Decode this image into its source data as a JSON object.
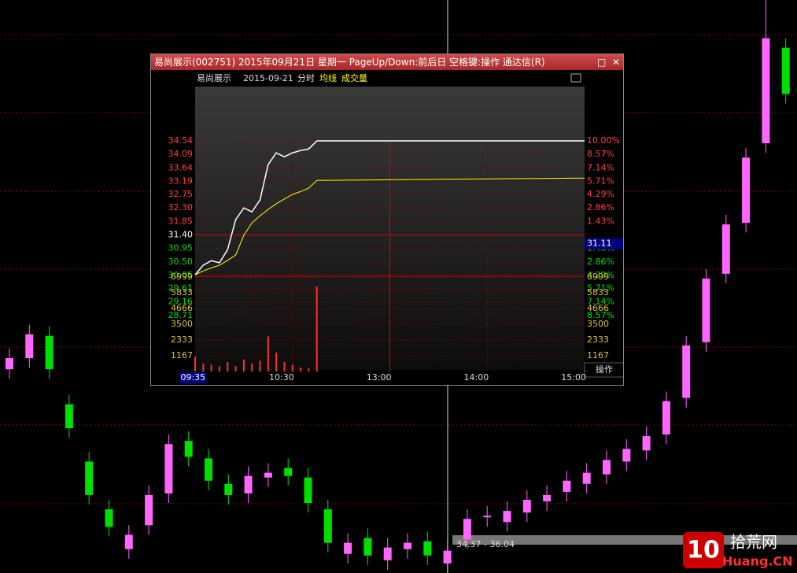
{
  "chart_data": [
    {
      "type": "candlestick",
      "ylim": [
        14,
        50
      ],
      "up_color": "#ff66ff",
      "down_color": "#00e000",
      "open": [
        26.8,
        27.5,
        28.9,
        24.6,
        21.0,
        18.0,
        15.5,
        17.0,
        19.0,
        22.3,
        21.2,
        19.6,
        19.0,
        20.0,
        20.6,
        20.0,
        18.0,
        15.2,
        16.2,
        14.8,
        15.5,
        16.0,
        14.6,
        16.1,
        17.5,
        17.2,
        17.8,
        18.5,
        19.1,
        19.6,
        20.2,
        21.0,
        21.7,
        22.7,
        25.0,
        28.5,
        32.8,
        36.0,
        41.0,
        47.0
      ],
      "close": [
        27.5,
        29.0,
        26.8,
        23.1,
        18.9,
        16.9,
        16.4,
        18.9,
        22.1,
        21.3,
        19.8,
        18.9,
        20.1,
        20.3,
        20.1,
        18.4,
        15.9,
        15.9,
        15.1,
        15.6,
        15.9,
        15.1,
        15.4,
        17.4,
        17.6,
        17.9,
        18.6,
        18.9,
        19.8,
        20.3,
        21.1,
        21.8,
        22.6,
        24.8,
        28.3,
        32.5,
        35.9,
        40.1,
        47.6,
        44.1
      ],
      "high": [
        28.1,
        29.6,
        29.5,
        25.2,
        21.6,
        18.6,
        17.0,
        19.5,
        22.7,
        22.9,
        21.8,
        20.2,
        20.7,
        20.9,
        21.2,
        20.6,
        18.6,
        16.5,
        16.8,
        16.2,
        16.5,
        16.6,
        16.0,
        18.0,
        18.2,
        18.5,
        19.2,
        19.5,
        20.4,
        20.9,
        21.7,
        22.4,
        23.2,
        25.4,
        28.9,
        33.1,
        36.5,
        40.7,
        51.0,
        47.6
      ],
      "low": [
        26.2,
        26.9,
        26.2,
        22.5,
        18.3,
        16.3,
        14.9,
        16.4,
        18.4,
        20.7,
        19.2,
        18.3,
        18.4,
        19.4,
        19.5,
        17.8,
        15.3,
        14.6,
        14.5,
        14.2,
        14.9,
        14.5,
        14.0,
        15.5,
        16.9,
        16.6,
        17.2,
        17.9,
        18.5,
        19.0,
        19.6,
        20.4,
        21.1,
        22.1,
        24.4,
        27.9,
        32.2,
        35.4,
        40.4,
        43.5
      ],
      "range_label": "34.37 - 36.04",
      "watermark": {
        "logo": "10",
        "name": "拾荒网",
        "url": "Huang.CN"
      }
    },
    {
      "type": "line",
      "window_title": "易尚展示(002751) 2015年09月21日 星期一 PageUp/Down:前后日 空格键:操作 通达信(R)",
      "symbol_name": "易尚展示",
      "date": "2015-09-21",
      "mode": "分时",
      "x": [
        0,
        5,
        10,
        15,
        20,
        25,
        30,
        35,
        40,
        45,
        50,
        55,
        60,
        65,
        70,
        75,
        240
      ],
      "xlim": [
        0,
        240
      ],
      "xticks": [
        {
          "value": 60,
          "label": "10:30"
        },
        {
          "value": 120,
          "label": "13:00"
        },
        {
          "value": 180,
          "label": "14:00"
        },
        {
          "value": 240,
          "label": "15:00"
        }
      ],
      "ylim": [
        28.26,
        34.54
      ],
      "base": 31.4,
      "yticks": [
        34.54,
        34.09,
        33.64,
        33.19,
        32.75,
        {
          "value": 32.3,
          "label": "32.30"
        },
        31.85,
        {
          "value": 31.4,
          "label": "31.40"
        },
        30.95,
        {
          "value": 30.5,
          "label": "30.50"
        },
        30.05,
        29.61,
        29.16,
        28.71
      ],
      "pct_ticks": [
        {
          "value": 34.54,
          "label": "10.00%"
        },
        {
          "value": 34.09,
          "label": "8.57%"
        },
        {
          "value": 33.64,
          "label": "7.14%"
        },
        {
          "value": 33.19,
          "label": "5.71%"
        },
        {
          "value": 32.75,
          "label": "4.29%"
        },
        {
          "value": 32.3,
          "label": "2.86%"
        },
        {
          "value": 31.85,
          "label": "1.43%"
        },
        {
          "value": 30.95,
          "label": "1.43%"
        },
        {
          "value": 30.5,
          "label": "2.86%"
        },
        {
          "value": 30.05,
          "label": "4.29%"
        },
        {
          "value": 29.61,
          "label": "5.71%"
        },
        {
          "value": 29.16,
          "label": "7.14%"
        },
        {
          "value": 28.71,
          "label": "8.57%"
        }
      ],
      "y2lim": [
        0,
        7057
      ],
      "y2ticks": [
        6999,
        5833,
        4666,
        3500,
        2333,
        1167
      ],
      "series": [
        {
          "color": "#ffffff",
          "values": [
            30.07,
            30.39,
            30.54,
            30.47,
            30.91,
            31.91,
            32.3,
            32.17,
            32.57,
            33.75,
            34.14,
            34.01,
            34.14,
            34.22,
            34.27,
            34.54,
            34.54
          ]
        },
        {
          "name": "均线",
          "color": "#ffff00",
          "values": [
            30.07,
            30.2,
            30.3,
            30.39,
            30.55,
            30.73,
            31.39,
            31.8,
            32.04,
            32.25,
            32.44,
            32.6,
            32.75,
            32.85,
            32.96,
            33.22,
            33.3
          ]
        },
        {
          "name": "成交量",
          "color": "#ff3030",
          "axis": "y2",
          "values": [
            1100,
            600,
            500,
            400,
            700,
            400,
            900,
            600,
            800,
            2600,
            1400,
            700,
            500,
            300,
            250,
            6300,
            50
          ]
        }
      ],
      "crosshair_x": {
        "value": 5,
        "label": "09:35"
      },
      "crosshair_y": 31.11,
      "operate_label": "操作"
    }
  ]
}
